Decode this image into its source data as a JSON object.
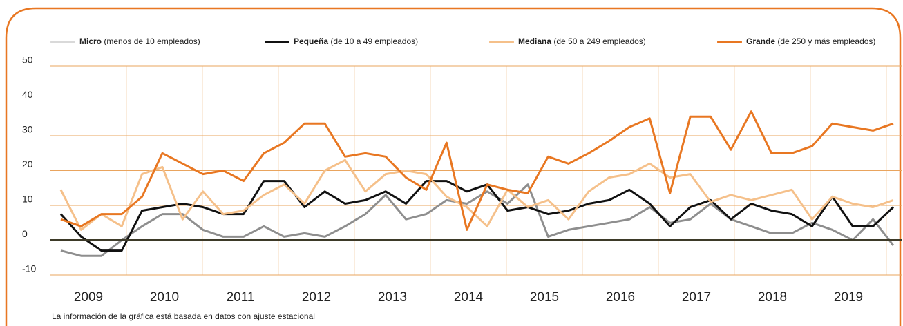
{
  "chart_data": {
    "type": "line",
    "footnote": "La información de la gráfica está basada en datos con ajuste estacional",
    "years": [
      "2009",
      "2010",
      "2011",
      "2012",
      "2013",
      "2014",
      "2015",
      "2016",
      "2017",
      "2018",
      "2019"
    ],
    "ylim": [
      -10,
      50
    ],
    "yticks": [
      -10,
      0,
      10,
      20,
      30,
      40,
      50
    ],
    "grid": true,
    "series": [
      {
        "name": "Micro",
        "detail": "(menos de 10 empleados)",
        "color": "#8e8e8e",
        "legend_color": "#d9d9d9",
        "values": [
          -3,
          -4.5,
          -4.5,
          0,
          4,
          7.5,
          7.5,
          3,
          1,
          1,
          4,
          1,
          2,
          1,
          4,
          7.5,
          13,
          6,
          7.5,
          11.5,
          10.5,
          14,
          10.5,
          16,
          1,
          3,
          4,
          5,
          6,
          9.5,
          5,
          6,
          10.5,
          6,
          4,
          2,
          2,
          5,
          3,
          0,
          6,
          -1.5
        ]
      },
      {
        "name": "Pequeña",
        "detail": "(de 10 a 49 empleados)",
        "color": "#111111",
        "legend_color": "#111111",
        "values": [
          7.5,
          1,
          -3,
          -3,
          8.5,
          9.5,
          10.5,
          9.5,
          7.5,
          7.5,
          17,
          17,
          9.5,
          14,
          10.5,
          11.5,
          14,
          10.5,
          17,
          17,
          14,
          16,
          8.5,
          9.5,
          7.5,
          8.5,
          10.5,
          11.5,
          14.5,
          10.5,
          4,
          9.5,
          11.5,
          6,
          10.5,
          8.5,
          7.5,
          4,
          12.5,
          4,
          4,
          9.5
        ]
      },
      {
        "name": "Mediana",
        "detail": "(de 50 a 249 empleados)",
        "color": "#f5c08a",
        "legend_color": "#f5c08a",
        "values": [
          14.5,
          3,
          7.5,
          4,
          19,
          21,
          6,
          14,
          7.5,
          8.5,
          13,
          16,
          10.5,
          20,
          23,
          14,
          19,
          20,
          19,
          12.5,
          9.5,
          4,
          14.5,
          9.5,
          11.5,
          6,
          14,
          18,
          19,
          22,
          18,
          19,
          11,
          13,
          11.5,
          13,
          14.5,
          6,
          12.5,
          10.5,
          9.5,
          11.5
        ]
      },
      {
        "name": "Grande",
        "detail": "(de 250 y más empleados)",
        "color": "#e87722",
        "legend_color": "#e87722",
        "values": [
          6,
          4,
          7.5,
          7.5,
          12.5,
          25,
          22,
          19,
          20,
          17,
          25,
          28,
          33.5,
          33.5,
          24,
          25,
          24,
          18,
          14.5,
          28,
          3,
          16,
          14.5,
          13.5,
          24,
          22,
          25,
          28.5,
          32.5,
          35,
          13.5,
          35.5,
          35.5,
          26,
          37,
          25,
          25,
          27,
          33.5,
          32.5,
          31.5,
          33.5
        ]
      }
    ]
  }
}
